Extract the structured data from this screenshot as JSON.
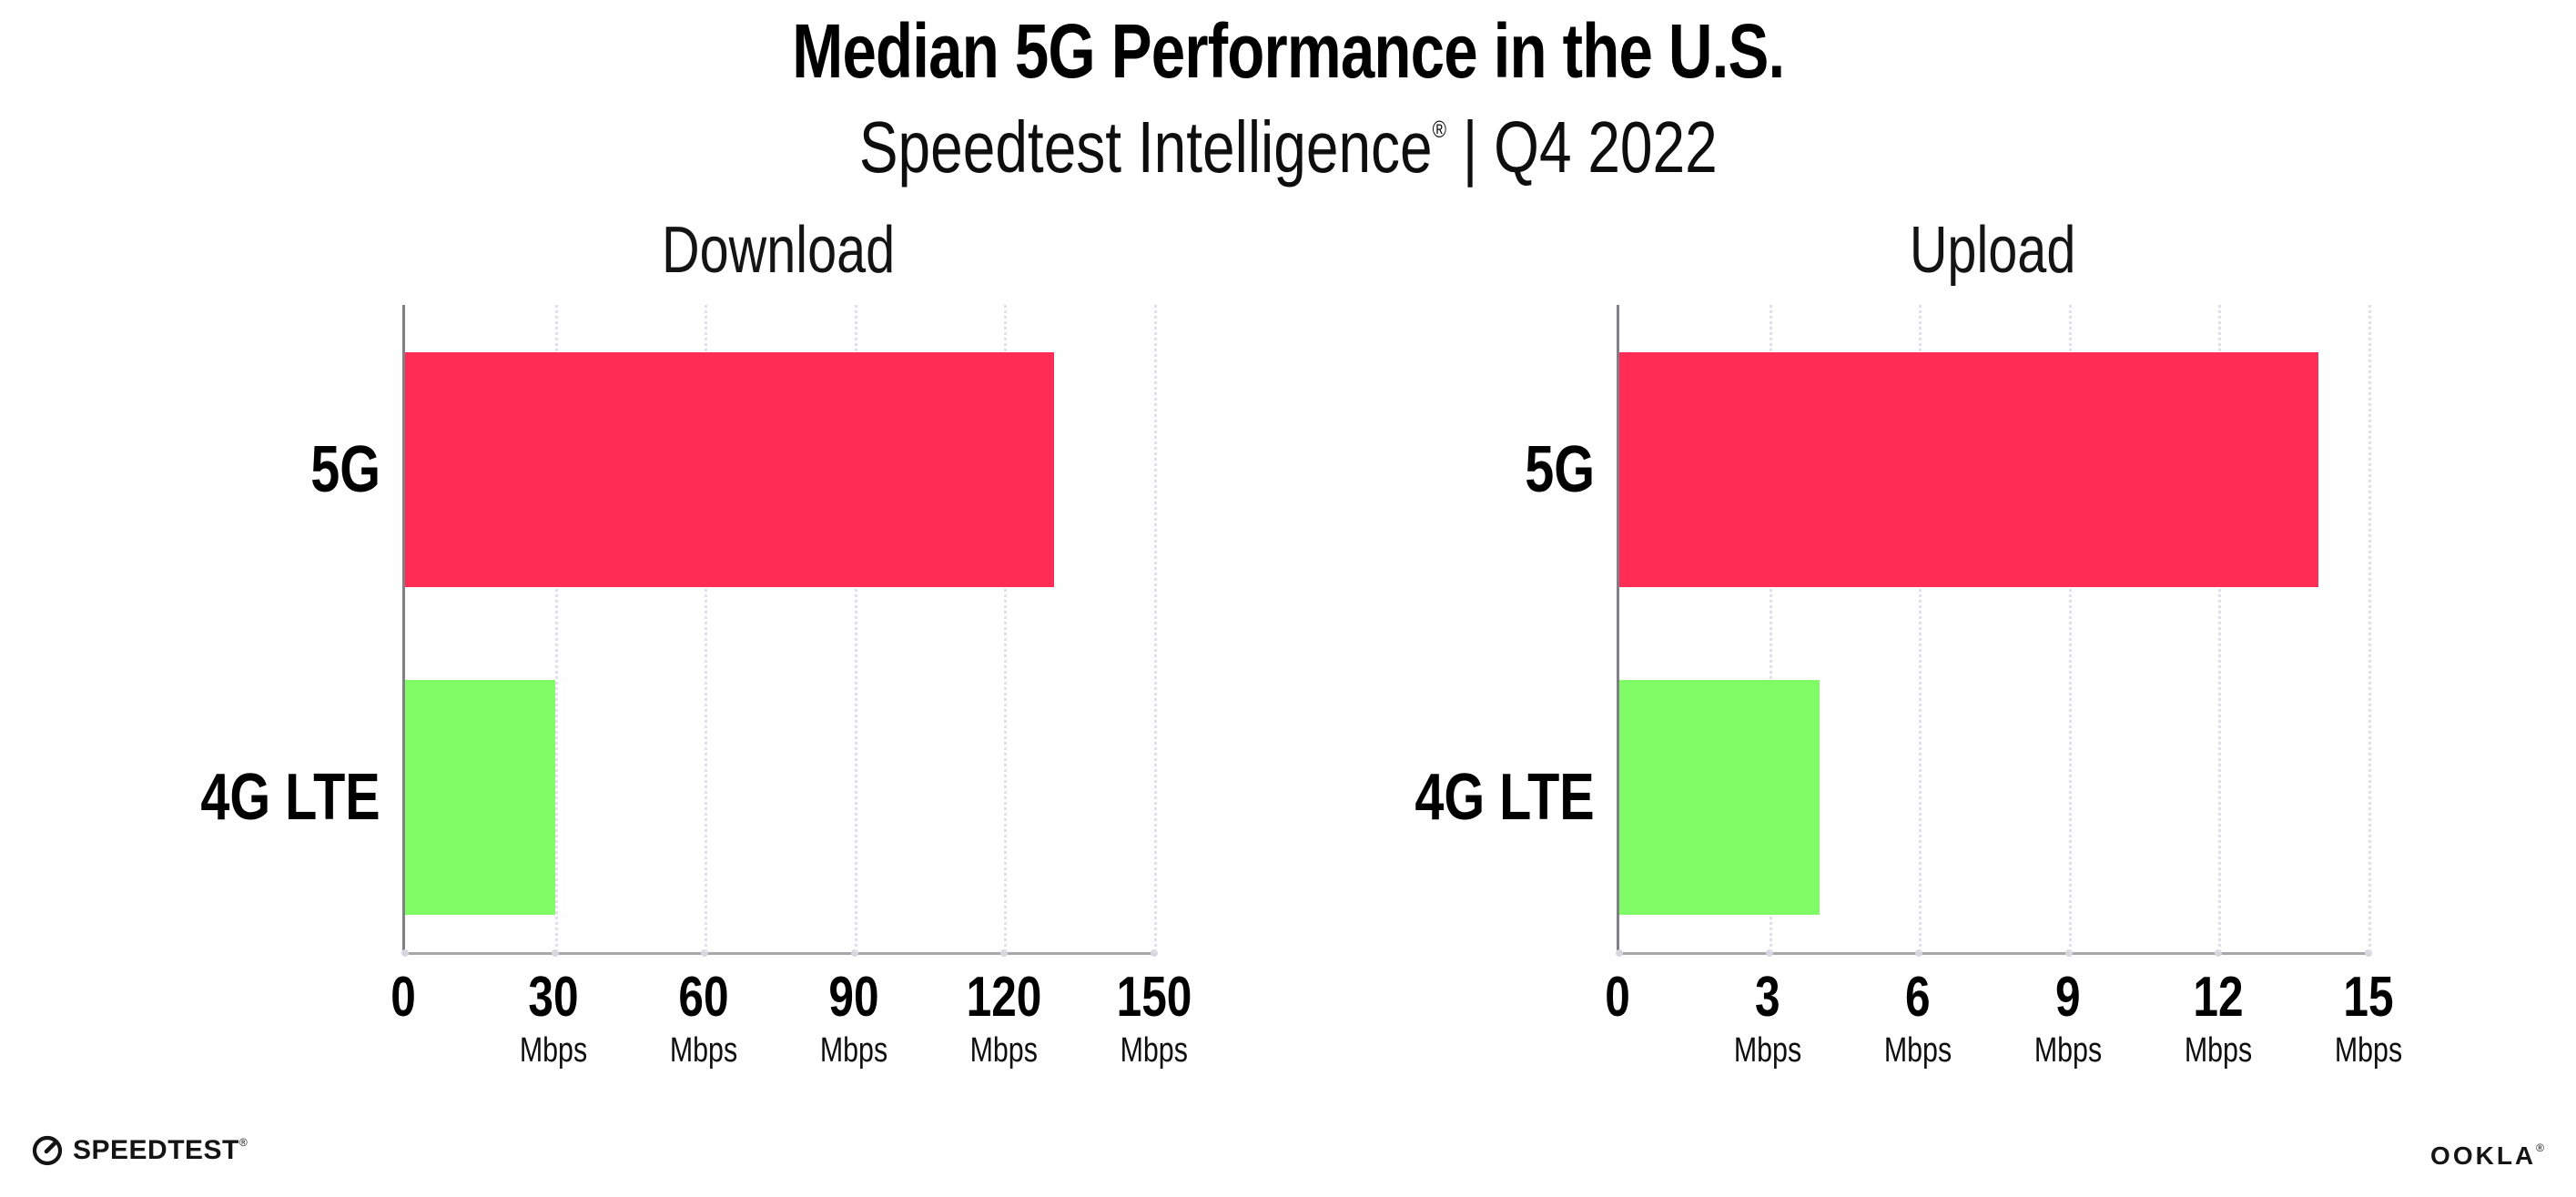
{
  "header": {
    "title": "Median 5G Performance in the U.S.",
    "subtitle": {
      "brand": "Speedtest Intelligence",
      "registered": "®",
      "rest": " | Q4 2022"
    }
  },
  "chart_data": [
    {
      "type": "bar",
      "orientation": "horizontal",
      "title": "Download",
      "categories": [
        "5G",
        "4G LTE"
      ],
      "values": [
        130,
        30
      ],
      "unit": "Mbps",
      "xlim": [
        0,
        150
      ],
      "xticks": [
        0,
        30,
        60,
        90,
        120,
        150
      ],
      "tick_unit": "Mbps",
      "bar_colors": [
        "#FF2D55",
        "#7FFC66"
      ],
      "grid": "dotted-vertical",
      "legend": "none"
    },
    {
      "type": "bar",
      "orientation": "horizontal",
      "title": "Upload",
      "categories": [
        "5G",
        "4G LTE"
      ],
      "values": [
        14,
        4
      ],
      "unit": "Mbps",
      "xlim": [
        0,
        15
      ],
      "xticks": [
        0,
        3,
        6,
        9,
        12,
        15
      ],
      "tick_unit": "Mbps",
      "bar_colors": [
        "#FF2D55",
        "#7FFC66"
      ],
      "grid": "dotted-vertical",
      "legend": "none"
    }
  ],
  "footer": {
    "speedtest_logo_text": "SPEEDTEST",
    "speedtest_trademark": "®",
    "ookla_logo_text": "OOKLA",
    "ookla_trademark": "®"
  },
  "colors": {
    "bar_5g": "#FF2D55",
    "bar_4g_lte": "#7FFC66",
    "gridline": "#e0e0ea",
    "y_axis": "#7f7f85",
    "x_axis": "#a8a8ac",
    "text": "#0b0b0c"
  }
}
